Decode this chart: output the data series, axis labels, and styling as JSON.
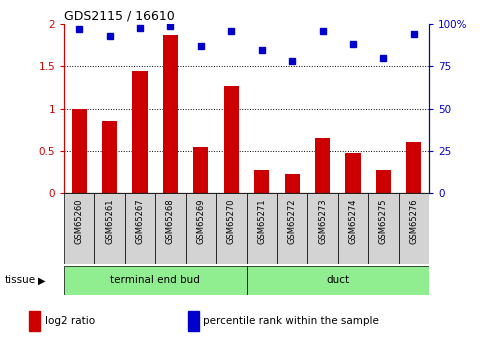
{
  "title": "GDS2115 / 16610",
  "categories": [
    "GSM65260",
    "GSM65261",
    "GSM65267",
    "GSM65268",
    "GSM65269",
    "GSM65270",
    "GSM65271",
    "GSM65272",
    "GSM65273",
    "GSM65274",
    "GSM65275",
    "GSM65276"
  ],
  "log2_ratio": [
    1.0,
    0.85,
    1.45,
    1.87,
    0.55,
    1.27,
    0.28,
    0.23,
    0.65,
    0.47,
    0.27,
    0.6
  ],
  "percentile_rank": [
    97,
    93,
    98,
    99,
    87,
    96,
    85,
    78,
    96,
    88,
    80,
    94
  ],
  "bar_color": "#cc0000",
  "dot_color": "#0000cc",
  "ylim_left": [
    0,
    2
  ],
  "ylim_right": [
    0,
    100
  ],
  "yticks_left": [
    0,
    0.5,
    1.0,
    1.5,
    2
  ],
  "yticks_right": [
    0,
    25,
    50,
    75,
    100
  ],
  "ytick_labels_left": [
    "0",
    "0.5",
    "1",
    "1.5",
    "2"
  ],
  "ytick_labels_right": [
    "0",
    "25",
    "50",
    "75",
    "100%"
  ],
  "grid_values": [
    0.5,
    1.0,
    1.5
  ],
  "n_teb": 6,
  "n_duct": 6,
  "teb_label": "terminal end bud",
  "duct_label": "duct",
  "tissue_label": "tissue",
  "tissue_color": "#90ee90",
  "sample_box_color": "#d3d3d3",
  "legend_items": [
    {
      "color": "#cc0000",
      "label": "log2 ratio"
    },
    {
      "color": "#0000cc",
      "label": "percentile rank within the sample"
    }
  ],
  "bar_width": 0.5
}
